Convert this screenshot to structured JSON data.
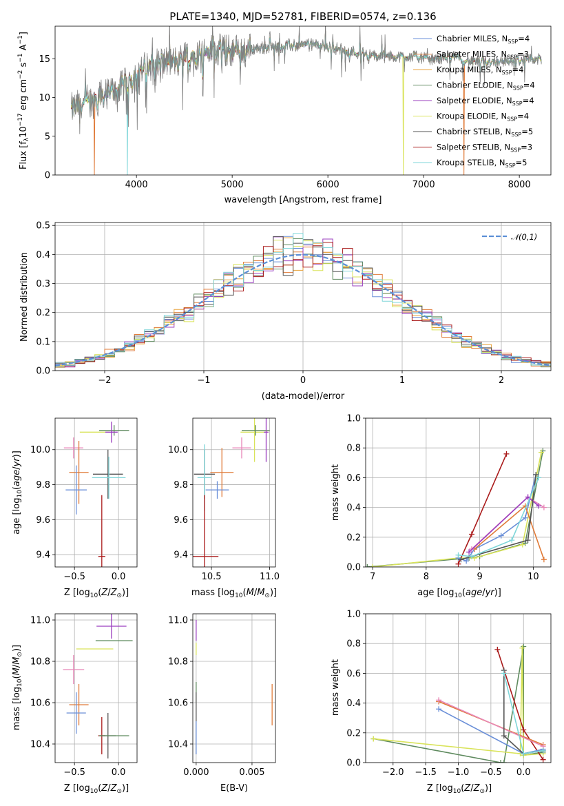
{
  "figure": {
    "title": "PLATE=1340, MJD=52781, FIBERID=0574, z=0.136"
  },
  "colors": {
    "Chabrier MILES": "#6a8fd8",
    "Salpeter MILES": "#e07b39",
    "Kroupa MILES": "#e8a33c",
    "Chabrier ELODIE": "#5e8a5e",
    "Salpeter ELODIE": "#9b3fbf",
    "Kroupa ELODIE": "#d9e35a",
    "Chabrier STELIB": "#555555",
    "Salpeter STELIB": "#aa1b1b",
    "Kroupa STELIB": "#7fd6d9",
    "pink": "#e887b8",
    "gauss": "#5b8fd6"
  },
  "chart_data": [
    {
      "id": "spectrum",
      "type": "line",
      "title": "PLATE=1340, MJD=52781, FIBERID=0574, z=0.136",
      "xlabel": "wavelength [Angstrom, rest frame]",
      "ylabel": "Flux [f_λ 10^-17 erg cm^-2 s^-1 A^-1]",
      "xlim": [
        3150,
        8330
      ],
      "ylim": [
        0,
        19.2
      ],
      "xticks": [
        4000,
        5000,
        6000,
        7000,
        8000
      ],
      "yticks": [
        0,
        5,
        10,
        15
      ],
      "grid": false,
      "legend_position": "top-right",
      "legend": [
        "Chabrier MILES, N_SSP=4",
        "Salpeter MILES, N_SSP=3",
        "Kroupa MILES, N_SSP=4",
        "Chabrier ELODIE, N_SSP=4",
        "Salpeter ELODIE, N_SSP=4",
        "Kroupa ELODIE, N_SSP=4",
        "Chabrier STELIB, N_SSP=5",
        "Salpeter STELIB, N_SSP=3",
        "Kroupa STELIB, N_SSP=5"
      ],
      "continuum": {
        "x": [
          3320,
          3500,
          3650,
          3800,
          3950,
          4050,
          4200,
          4400,
          4600,
          4800,
          5000,
          5300,
          5600,
          5900,
          6100,
          6300,
          6500,
          6700,
          6900,
          7100,
          7300,
          7500,
          7800,
          8000,
          8200
        ],
        "y": [
          8.5,
          9.6,
          10.3,
          11.0,
          12.3,
          13.6,
          14.5,
          14.6,
          15.5,
          16.1,
          16.0,
          16.4,
          16.7,
          16.8,
          16.3,
          15.8,
          15.3,
          15.3,
          15.3,
          14.9,
          15.3,
          14.6,
          14.7,
          14.8,
          14.9
        ]
      },
      "dips": [
        {
          "series": "Salpeter MILES",
          "x": 3560
        },
        {
          "series": "Kroupa STELIB",
          "x": 3905
        },
        {
          "series": "Kroupa ELODIE",
          "x": 6790
        },
        {
          "series": "Salpeter MILES",
          "x": 7420
        }
      ]
    },
    {
      "id": "residuals",
      "type": "histogram",
      "xlabel": "(data-model)/error",
      "ylabel": "Normed distribution",
      "xlim": [
        -2.5,
        2.5
      ],
      "ylim": [
        0,
        0.51
      ],
      "xticks": [
        -2,
        -1,
        0,
        1,
        2
      ],
      "yticks": [
        0.0,
        0.1,
        0.2,
        0.3,
        0.4,
        0.5
      ],
      "grid": true,
      "legend_position": "top-right",
      "legend": [
        "𝒩(0,1)"
      ],
      "bin_width": 0.1
    },
    {
      "id": "age_vs_Z",
      "type": "errorbar",
      "xlabel": "Z [log10(Z/Z⊙)]",
      "ylabel": "age [log10(age/yr)]",
      "xlim": [
        -0.72,
        0.21
      ],
      "ylim": [
        9.33,
        10.18
      ],
      "xticks": [
        -0.5,
        0.0
      ],
      "yticks": [
        9.4,
        9.6,
        9.8,
        10.0
      ],
      "grid": true,
      "points": [
        {
          "series": "Kroupa ELODIE",
          "x": -0.27,
          "y": 10.1,
          "xerr": 0.17,
          "yerr": 0.0
        },
        {
          "series": "Chabrier ELODIE",
          "x": -0.05,
          "y": 10.11,
          "xerr": 0.17,
          "yerr": 0.03
        },
        {
          "series": "Salpeter ELODIE",
          "x": -0.08,
          "y": 10.1,
          "xerr": 0.07,
          "yerr": 0.06
        },
        {
          "series": "pink",
          "x": -0.51,
          "y": 10.01,
          "xerr": 0.11,
          "yerr": 0.06
        },
        {
          "series": "Salpeter MILES",
          "x": -0.45,
          "y": 9.87,
          "xerr": 0.11,
          "yerr": 0.18
        },
        {
          "series": "Chabrier STELIB",
          "x": -0.12,
          "y": 9.86,
          "xerr": 0.17,
          "yerr": 0.14
        },
        {
          "series": "Kroupa STELIB",
          "x": -0.11,
          "y": 9.84,
          "xerr": 0.19,
          "yerr": 0.12
        },
        {
          "series": "Chabrier MILES",
          "x": -0.48,
          "y": 9.77,
          "xerr": 0.12,
          "yerr": 0.14
        },
        {
          "series": "Salpeter STELIB",
          "x": -0.19,
          "y": 9.39,
          "xerr": 0.04,
          "yerr": 0.35
        }
      ]
    },
    {
      "id": "age_vs_mass",
      "type": "errorbar",
      "xlabel": "mass [log10(M/M⊙)]",
      "ylabel": "",
      "xlim": [
        10.34,
        11.05
      ],
      "ylim": [
        9.33,
        10.18
      ],
      "xticks": [
        10.5,
        11.0
      ],
      "yticks": [
        9.4,
        9.6,
        9.8,
        10.0
      ],
      "grid": true,
      "points": [
        {
          "series": "Kroupa ELODIE",
          "x": 10.87,
          "y": 10.1,
          "xerr": 0.12,
          "yerr": 0.17
        },
        {
          "series": "Chabrier ELODIE",
          "x": 10.88,
          "y": 10.11,
          "xerr": 0.12,
          "yerr": 0.03
        },
        {
          "series": "Salpeter ELODIE",
          "x": 10.97,
          "y": 10.1,
          "xerr": 0.02,
          "yerr": 0.17
        },
        {
          "series": "pink",
          "x": 10.76,
          "y": 10.01,
          "xerr": 0.08,
          "yerr": 0.06
        },
        {
          "series": "Salpeter MILES",
          "x": 10.59,
          "y": 9.87,
          "xerr": 0.1,
          "yerr": 0.14
        },
        {
          "series": "Chabrier STELIB",
          "x": 10.44,
          "y": 9.86,
          "xerr": 0.09,
          "yerr": 0.14
        },
        {
          "series": "Kroupa STELIB",
          "x": 10.44,
          "y": 9.84,
          "xerr": 0.06,
          "yerr": 0.19
        },
        {
          "series": "Chabrier MILES",
          "x": 10.55,
          "y": 9.77,
          "xerr": 0.1,
          "yerr": 0.05
        },
        {
          "series": "Salpeter STELIB",
          "x": 10.44,
          "y": 9.39,
          "xerr": 0.12,
          "yerr": 0.35
        }
      ]
    },
    {
      "id": "weight_vs_age",
      "type": "line",
      "xlabel": "age [log10(age/yr)]",
      "ylabel": "mass weight",
      "xlim": [
        6.87,
        10.33
      ],
      "ylim": [
        0,
        1.0
      ],
      "xticks": [
        7,
        8,
        9,
        10
      ],
      "yticks": [
        0.0,
        0.2,
        0.4,
        0.6,
        0.8,
        1.0
      ],
      "grid": true,
      "series": [
        {
          "color": "Chabrier ELODIE",
          "x": [
            6.9,
            8.8,
            9.0,
            9.85,
            10.18
          ],
          "y": [
            0.0,
            0.06,
            0.07,
            0.16,
            0.78
          ]
        },
        {
          "color": "Kroupa ELODIE",
          "x": [
            7.0,
            8.6,
            8.9,
            9.8,
            10.15
          ],
          "y": [
            0.0,
            0.06,
            0.06,
            0.15,
            0.77
          ]
        },
        {
          "color": "Salpeter STELIB",
          "x": [
            8.6,
            8.85,
            9.5
          ],
          "y": [
            0.02,
            0.22,
            0.76
          ]
        },
        {
          "color": "Chabrier MILES",
          "x": [
            8.6,
            8.75,
            8.9,
            9.4,
            9.85,
            10.05
          ],
          "y": [
            0.06,
            0.04,
            0.12,
            0.21,
            0.33,
            0.62
          ]
        },
        {
          "color": "Salpeter MILES",
          "x": [
            8.9,
            9.85,
            10.2
          ],
          "y": [
            0.12,
            0.41,
            0.05
          ]
        },
        {
          "color": "pink",
          "x": [
            8.85,
            9.9,
            10.2
          ],
          "y": [
            0.12,
            0.47,
            0.4
          ]
        },
        {
          "color": "Salpeter ELODIE",
          "x": [
            8.8,
            9.9,
            10.1
          ],
          "y": [
            0.1,
            0.47,
            0.41
          ]
        },
        {
          "color": "Chabrier STELIB",
          "x": [
            8.65,
            9.9,
            10.05
          ],
          "y": [
            0.05,
            0.18,
            0.62
          ]
        },
        {
          "color": "Kroupa STELIB",
          "x": [
            8.6,
            8.85,
            9.6,
            10.1
          ],
          "y": [
            0.08,
            0.07,
            0.18,
            0.6
          ]
        }
      ]
    },
    {
      "id": "mass_vs_Z",
      "type": "errorbar",
      "xlabel": "Z [log10(Z/Z⊙)]",
      "ylabel": "mass [log10(M/M⊙)]",
      "xlim": [
        -0.72,
        0.21
      ],
      "ylim": [
        10.31,
        11.03
      ],
      "xticks": [
        -0.5,
        0.0
      ],
      "yticks": [
        10.4,
        10.6,
        10.8,
        11.0
      ],
      "grid": true,
      "points": [
        {
          "series": "Salpeter ELODIE",
          "x": -0.08,
          "y": 10.97,
          "xerr": 0.17,
          "yerr": 0.06
        },
        {
          "series": "Chabrier ELODIE",
          "x": -0.05,
          "y": 10.9,
          "xerr": 0.21,
          "yerr": 0.0
        },
        {
          "series": "Kroupa ELODIE",
          "x": -0.27,
          "y": 10.86,
          "xerr": 0.21,
          "yerr": 0.0
        },
        {
          "series": "pink",
          "x": -0.51,
          "y": 10.76,
          "xerr": 0.12,
          "yerr": 0.07
        },
        {
          "series": "Salpeter MILES",
          "x": -0.45,
          "y": 10.59,
          "xerr": 0.11,
          "yerr": 0.1
        },
        {
          "series": "Chabrier MILES",
          "x": -0.48,
          "y": 10.55,
          "xerr": 0.11,
          "yerr": 0.1
        },
        {
          "series": "Salpeter STELIB",
          "x": -0.19,
          "y": 10.44,
          "xerr": 0.04,
          "yerr": 0.09
        },
        {
          "series": "Chabrier STELIB",
          "x": -0.12,
          "y": 10.44,
          "xerr": 0.09,
          "yerr": 0.11
        },
        {
          "series": "Chabrier ELODIE",
          "x": -0.05,
          "y": 10.44,
          "xerr": 0.17,
          "yerr": 0.0
        }
      ]
    },
    {
      "id": "mass_vs_EBV",
      "type": "errorbar",
      "xlabel": "E(B-V)",
      "ylabel": "",
      "xlim": [
        -0.0003,
        0.0071
      ],
      "ylim": [
        10.31,
        11.03
      ],
      "xticks": [
        0.0,
        0.005
      ],
      "xticklabels": [
        "0.000",
        "0.005"
      ],
      "yticks": [
        10.4,
        10.6,
        10.8,
        11.0
      ],
      "grid": true,
      "points": [
        {
          "series": "Salpeter ELODIE",
          "x": 0.0,
          "y": 10.95,
          "xerr": 0.0,
          "yerr": 0.05
        },
        {
          "series": "Kroupa ELODIE",
          "x": 0.0,
          "y": 10.86,
          "xerr": 0.0,
          "yerr": 0.03
        },
        {
          "series": "Chabrier ELODIE",
          "x": 0.0,
          "y": 10.65,
          "xerr": 0.0,
          "yerr": 0.05
        },
        {
          "series": "Chabrier STELIB",
          "x": 0.0,
          "y": 10.5,
          "xerr": 0.0,
          "yerr": 0.15
        },
        {
          "series": "Chabrier MILES",
          "x": 0.0,
          "y": 10.43,
          "xerr": 0.0,
          "yerr": 0.08
        },
        {
          "series": "Salpeter MILES",
          "x": 0.0068,
          "y": 10.59,
          "xerr": 0.0,
          "yerr": 0.1
        }
      ]
    },
    {
      "id": "weight_vs_Z",
      "type": "line",
      "xlabel": "Z [log10(Z/Z⊙)]",
      "ylabel": "mass weight",
      "xlim": [
        -2.42,
        0.42
      ],
      "ylim": [
        0,
        1.0
      ],
      "xticks": [
        -2.0,
        -1.5,
        -1.0,
        -0.5,
        0.0
      ],
      "yticks": [
        0.0,
        0.2,
        0.4,
        0.6,
        0.8,
        1.0
      ],
      "grid": true,
      "series": [
        {
          "color": "Chabrier ELODIE",
          "x": [
            -2.3,
            -0.35,
            -0.3,
            0.0,
            0.0,
            0.3
          ],
          "y": [
            0.16,
            0.0,
            0.0,
            0.78,
            0.05,
            0.07
          ]
        },
        {
          "color": "Kroupa ELODIE",
          "x": [
            -2.3,
            -0.05,
            -0.02,
            0.0,
            0.3
          ],
          "y": [
            0.16,
            0.06,
            0.77,
            0.05,
            0.06
          ]
        },
        {
          "color": "Salpeter STELIB",
          "x": [
            -0.4,
            0.0,
            0.3
          ],
          "y": [
            0.76,
            0.22,
            0.02
          ]
        },
        {
          "color": "Chabrier MILES",
          "x": [
            -1.3,
            0.0,
            0.3
          ],
          "y": [
            0.36,
            0.06,
            0.09
          ]
        },
        {
          "color": "Salpeter MILES",
          "x": [
            -1.3,
            0.3
          ],
          "y": [
            0.41,
            0.12
          ]
        },
        {
          "color": "pink",
          "x": [
            -1.3,
            0.3
          ],
          "y": [
            0.42,
            0.11
          ]
        },
        {
          "color": "Chabrier STELIB",
          "x": [
            -0.3,
            -0.3,
            0.0,
            0.3
          ],
          "y": [
            0.62,
            0.18,
            0.06,
            0.08
          ]
        },
        {
          "color": "Kroupa STELIB",
          "x": [
            -0.3,
            0.0,
            0.3
          ],
          "y": [
            0.6,
            0.06,
            0.08
          ]
        }
      ]
    }
  ]
}
